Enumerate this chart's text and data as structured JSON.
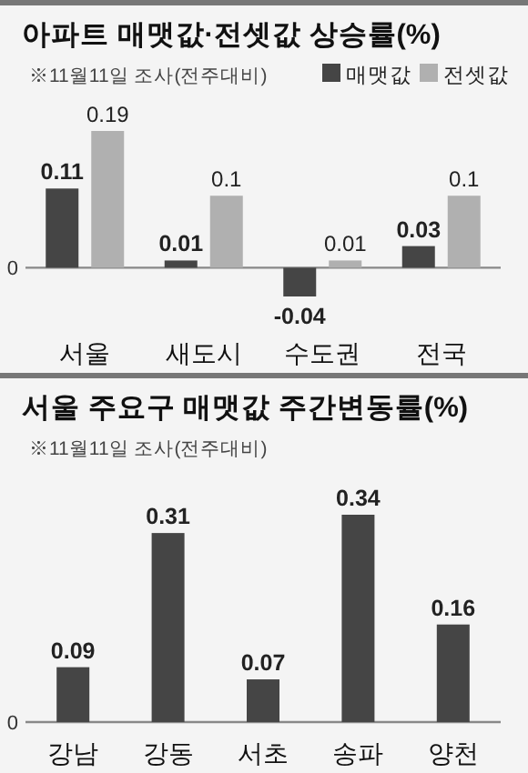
{
  "chart_data": [
    {
      "type": "bar",
      "title": "아파트 매맷값·전셋값 상승률(%)",
      "subtitle": "※11월11일 조사(전주대비)",
      "categories": [
        "서울",
        "새도시",
        "수도권",
        "전국"
      ],
      "series": [
        {
          "name": "매맷값",
          "color": "#454545",
          "values": [
            0.11,
            0.01,
            -0.04,
            0.03
          ]
        },
        {
          "name": "전셋값",
          "color": "#b0b0b0",
          "values": [
            0.19,
            0.1,
            0.01,
            0.1
          ]
        }
      ],
      "annotations": [
        "0"
      ],
      "legend": "top right",
      "data_labels": true
    },
    {
      "type": "bar",
      "title": "서울 주요구 매맷값 주간변동률(%)",
      "subtitle": "※11월11일 조사(전주대비)",
      "categories": [
        "강남",
        "강동",
        "서초",
        "송파",
        "양천"
      ],
      "series": [
        {
          "color": "#454545",
          "values": [
            0.09,
            0.31,
            0.07,
            0.34,
            0.16
          ]
        }
      ],
      "annotations": [
        "0"
      ],
      "data_labels": true
    }
  ]
}
